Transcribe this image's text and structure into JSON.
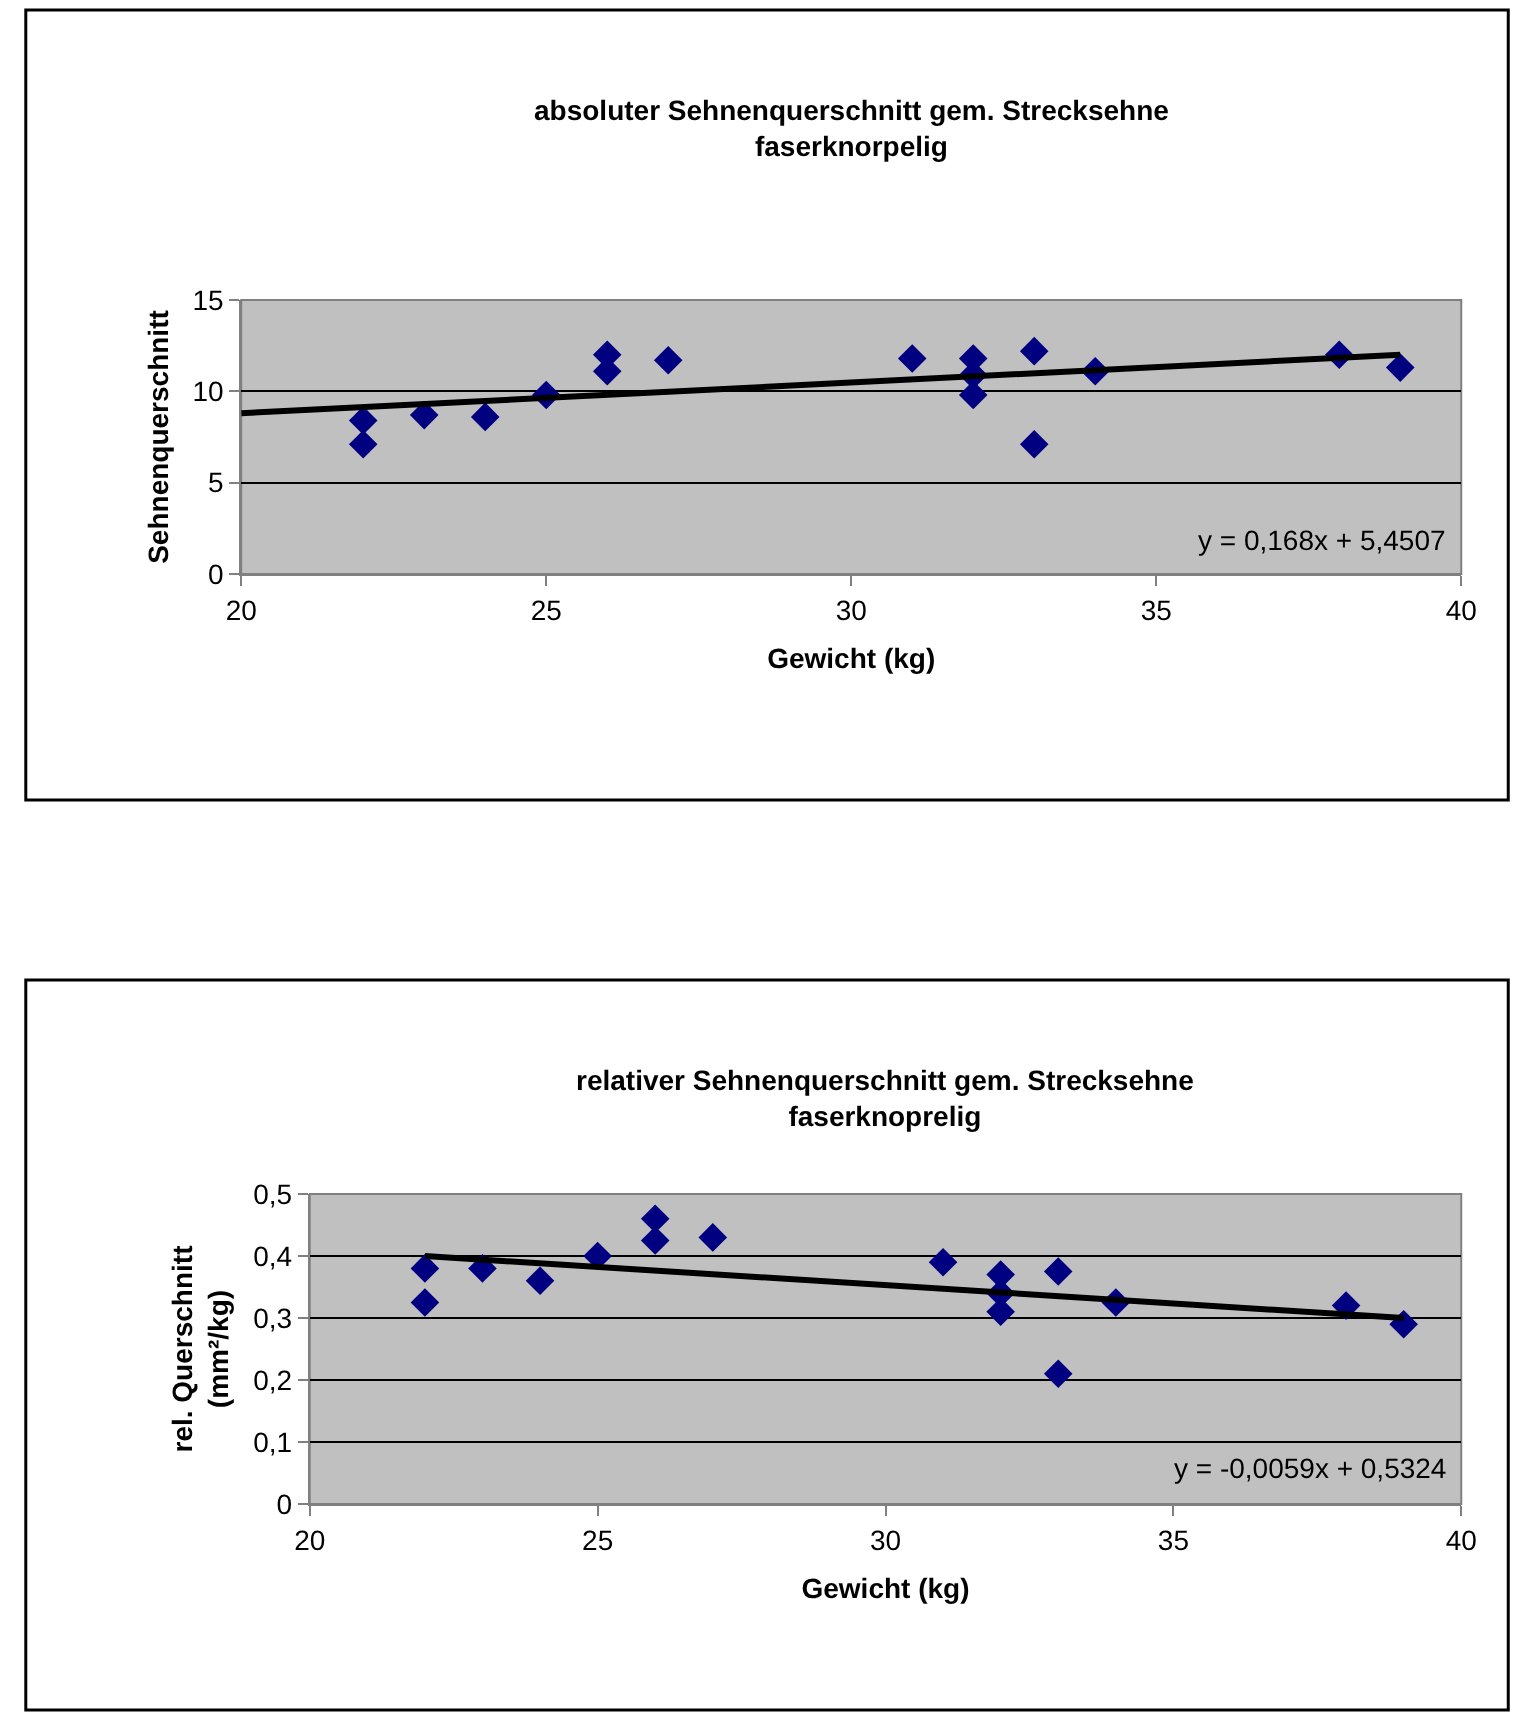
{
  "chart_data": [
    {
      "type": "scatter",
      "title": "absoluter Sehnenquerschnitt gem. Strecksehne\nfaserknorpelig",
      "xlabel": "Gewicht (kg)",
      "ylabel": "Sehnenquerschnitt",
      "xlim": [
        20,
        40
      ],
      "xticks": [
        20,
        25,
        30,
        35,
        40
      ],
      "ylim": [
        0,
        15
      ],
      "yticks": [
        0,
        5,
        10,
        15
      ],
      "grid": "y",
      "annotations": [
        "y = 0,168x + 5,4507"
      ],
      "series": [
        {
          "marker": "diamond",
          "color": "#000080",
          "x": [
            22,
            22,
            23,
            24,
            25,
            26,
            26,
            27,
            31,
            32,
            32,
            32,
            33,
            33,
            34,
            38,
            39
          ],
          "values": [
            8.4,
            7.1,
            8.7,
            8.6,
            9.8,
            12.0,
            11.1,
            11.7,
            11.8,
            11.8,
            10.9,
            9.8,
            12.2,
            7.1,
            11.1,
            12.0,
            11.3
          ]
        },
        {
          "type": "line",
          "marker": "none",
          "line_style": "solid",
          "color": "#000000",
          "x": [
            20,
            39
          ],
          "values": [
            8.8,
            12.0
          ]
        }
      ]
    },
    {
      "type": "scatter",
      "title": "relativer Sehnenquerschnitt gem. Strecksehne\nfaserknoprelig",
      "xlabel": "Gewicht (kg)",
      "ylabel": "rel. Querschnitt\n(mm²/kg)",
      "xlim": [
        20,
        40
      ],
      "xticks": [
        20,
        25,
        30,
        35,
        40
      ],
      "ylim": [
        0,
        0.5
      ],
      "yticks": [
        {
          "value": 0,
          "label": "0"
        },
        {
          "value": 0.1,
          "label": "0,1"
        },
        {
          "value": 0.2,
          "label": "0,2"
        },
        {
          "value": 0.3,
          "label": "0,3"
        },
        {
          "value": 0.4,
          "label": "0,4"
        },
        {
          "value": 0.5,
          "label": "0,5"
        }
      ],
      "grid": "y",
      "annotations": [
        "y = -0,0059x + 0,5324"
      ],
      "series": [
        {
          "marker": "diamond",
          "color": "#000080",
          "x": [
            22,
            22,
            23,
            24,
            25,
            26,
            26,
            27,
            31,
            32,
            32,
            32,
            33,
            33,
            34,
            38,
            39
          ],
          "values": [
            0.38,
            0.325,
            0.38,
            0.36,
            0.4,
            0.46,
            0.425,
            0.43,
            0.39,
            0.37,
            0.34,
            0.31,
            0.375,
            0.21,
            0.325,
            0.32,
            0.29
          ]
        },
        {
          "type": "line",
          "marker": "none",
          "line_style": "solid",
          "color": "#000000",
          "x": [
            22,
            39
          ],
          "values": [
            0.4,
            0.3
          ]
        }
      ]
    }
  ]
}
